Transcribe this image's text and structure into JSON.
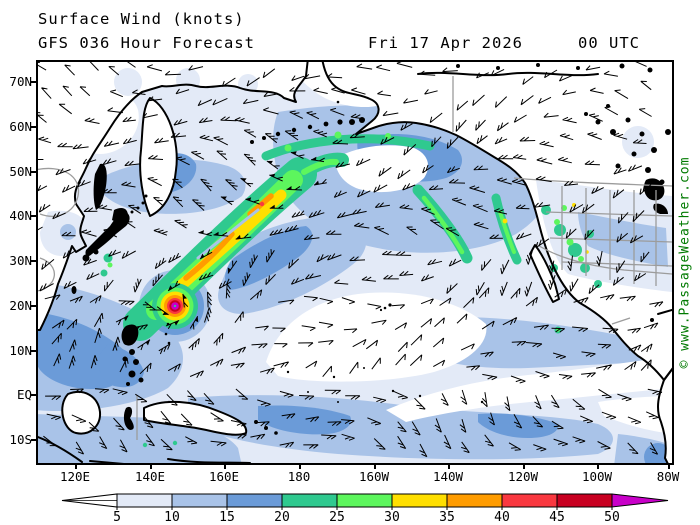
{
  "header": {
    "title": "Surface Wind (knots)",
    "model_line": "GFS 036 Hour Forecast",
    "valid_date": "Fri 17 Apr 2026",
    "valid_time": "00 UTC"
  },
  "map": {
    "lat_labels": [
      "70N",
      "60N",
      "50N",
      "40N",
      "30N",
      "20N",
      "10N",
      "EQ",
      "10S"
    ],
    "lon_labels": [
      "120E",
      "140E",
      "160E",
      "180",
      "160W",
      "140W",
      "120W",
      "100W",
      "80W"
    ]
  },
  "legend": {
    "tick_values": [
      "5",
      "10",
      "15",
      "20",
      "25",
      "30",
      "35",
      "40",
      "45",
      "50"
    ],
    "segment_colors": [
      "#e3eaf7",
      "#a9c3e8",
      "#6b9bd8",
      "#2fc98f",
      "#5df65d",
      "#ffdf00",
      "#ff9c00",
      "#f93840",
      "#c80021"
    ],
    "under_arrow_color": "#ffffff",
    "over_arrow_color": "#c800c8",
    "outline_color": "#000000"
  },
  "watermark": {
    "text": "© www.PassageWeather.com",
    "color": "#007a00"
  }
}
